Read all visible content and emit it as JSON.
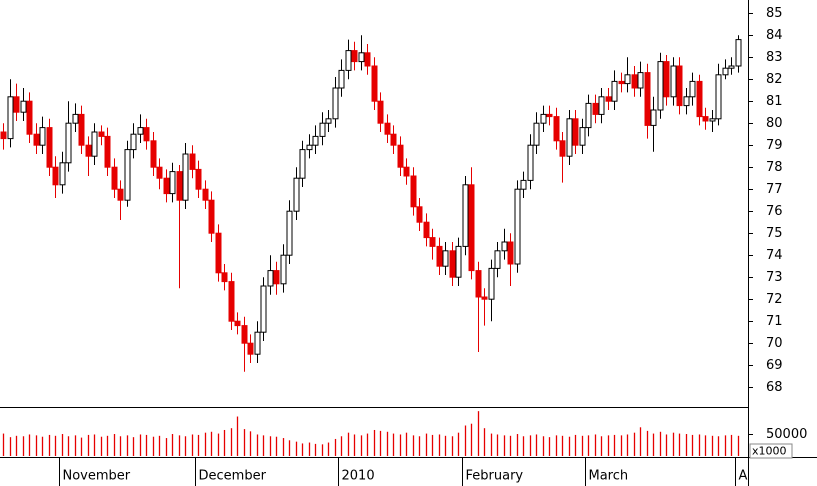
{
  "chart_data": {
    "type": "candlestick",
    "categories": [
      null,
      null,
      null,
      null,
      null,
      null,
      null,
      null,
      null,
      "November",
      null,
      null,
      null,
      null,
      null,
      null,
      null,
      null,
      null,
      null,
      null,
      null,
      null,
      null,
      null,
      null,
      null,
      null,
      null,
      null,
      "December",
      null,
      null,
      null,
      null,
      null,
      null,
      null,
      null,
      null,
      null,
      null,
      null,
      null,
      null,
      null,
      null,
      null,
      null,
      null,
      null,
      null,
      "2010",
      null,
      null,
      null,
      null,
      null,
      null,
      null,
      null,
      null,
      null,
      null,
      null,
      null,
      null,
      null,
      null,
      null,
      null,
      "February",
      null,
      null,
      null,
      null,
      null,
      null,
      null,
      null,
      null,
      null,
      null,
      null,
      null,
      null,
      null,
      null,
      null,
      null,
      "March",
      null,
      null,
      null,
      null,
      null,
      null,
      null,
      null,
      null,
      null,
      null,
      null,
      null,
      null,
      null,
      null,
      null,
      null,
      null,
      null,
      null,
      null,
      "A"
    ],
    "open": [
      79.6,
      79.3,
      81.2,
      80.5,
      81.0,
      79.5,
      79.0,
      79.8,
      78.0,
      77.2,
      78.2,
      80.0,
      80.4,
      79.0,
      78.5,
      79.6,
      79.4,
      78.0,
      77.0,
      76.5,
      78.8,
      79.5,
      79.8,
      79.2,
      78.0,
      77.5,
      76.8,
      77.8,
      76.5,
      78.6,
      77.9,
      77.0,
      76.5,
      75.0,
      73.2,
      72.8,
      71.0,
      70.8,
      70.0,
      69.5,
      70.5,
      72.6,
      73.3,
      72.7,
      74.0,
      76.0,
      77.5,
      78.8,
      79.0,
      79.4,
      80.0,
      80.2,
      81.6,
      82.4,
      83.3,
      82.8,
      83.2,
      82.6,
      81.0,
      80.0,
      79.5,
      79.0,
      78.0,
      77.6,
      76.2,
      75.5,
      74.8,
      74.4,
      73.5,
      74.2,
      73.0,
      74.4,
      77.2,
      73.3,
      72.1,
      72.0,
      73.4,
      74.2,
      74.6,
      73.6,
      77.0,
      77.4,
      79.0,
      80.0,
      80.4,
      80.3,
      79.2,
      78.5,
      80.2,
      79.0,
      79.8,
      80.9,
      80.4,
      81.2,
      81.0,
      81.9,
      81.8,
      82.2,
      81.6,
      82.3,
      79.9,
      80.6,
      82.8,
      81.2,
      82.6,
      80.8,
      81.2,
      81.9,
      80.3,
      80.1,
      80.2,
      82.2,
      82.5,
      82.6
    ],
    "high": [
      80.0,
      82.0,
      81.8,
      81.6,
      81.4,
      80.0,
      80.3,
      80.2,
      78.5,
      78.7,
      81.0,
      80.9,
      80.8,
      79.4,
      80.0,
      79.9,
      79.8,
      78.4,
      77.4,
      79.2,
      80.0,
      80.4,
      80.2,
      79.6,
      78.4,
      77.9,
      78.2,
      78.1,
      79.1,
      79.0,
      78.3,
      77.4,
      76.9,
      75.4,
      73.6,
      73.2,
      71.4,
      71.2,
      70.4,
      71.0,
      73.0,
      74.0,
      73.7,
      74.5,
      76.5,
      78.0,
      79.2,
      79.5,
      79.9,
      80.5,
      80.6,
      82.1,
      82.9,
      83.8,
      83.7,
      84.0,
      83.6,
      83.0,
      81.4,
      80.4,
      79.9,
      79.4,
      78.4,
      78.0,
      76.6,
      75.9,
      75.2,
      74.8,
      74.6,
      74.6,
      74.8,
      77.6,
      78.0,
      73.7,
      72.5,
      73.8,
      74.6,
      75.2,
      75.0,
      77.4,
      77.8,
      79.5,
      80.5,
      80.8,
      80.8,
      80.7,
      79.6,
      80.6,
      80.6,
      80.2,
      81.3,
      81.3,
      81.6,
      81.6,
      82.4,
      82.3,
      83.0,
      82.6,
      82.8,
      82.7,
      81.2,
      83.2,
      83.1,
      83.0,
      83.0,
      81.6,
      82.3,
      82.2,
      80.7,
      80.6,
      82.7,
      82.9,
      83.0,
      84.0
    ],
    "low": [
      78.8,
      78.9,
      80.1,
      80.1,
      79.1,
      78.6,
      78.6,
      77.6,
      76.6,
      76.8,
      77.8,
      79.6,
      78.6,
      77.6,
      78.1,
      79.0,
      77.6,
      76.6,
      75.6,
      76.2,
      78.4,
      79.1,
      78.8,
      77.6,
      77.0,
      76.4,
      76.4,
      72.5,
      76.1,
      77.5,
      76.6,
      76.1,
      74.6,
      72.8,
      72.4,
      70.6,
      70.4,
      68.7,
      69.1,
      69.1,
      70.1,
      72.2,
      72.2,
      72.3,
      73.6,
      75.6,
      77.1,
      78.4,
      78.6,
      79.0,
      79.6,
      79.8,
      81.2,
      82.0,
      82.4,
      82.4,
      82.2,
      80.6,
      79.6,
      79.1,
      78.6,
      77.6,
      77.2,
      75.8,
      75.1,
      74.4,
      73.8,
      73.1,
      73.1,
      72.6,
      72.6,
      74.0,
      72.9,
      69.6,
      70.8,
      71.0,
      73.0,
      73.8,
      72.6,
      73.2,
      76.6,
      77.0,
      78.6,
      79.6,
      79.9,
      78.8,
      77.3,
      78.1,
      78.6,
      78.6,
      79.4,
      80.0,
      80.0,
      80.6,
      80.6,
      81.4,
      81.4,
      81.2,
      81.2,
      79.3,
      78.7,
      80.2,
      80.8,
      80.8,
      80.4,
      80.4,
      80.8,
      79.9,
      79.7,
      79.6,
      79.9,
      82.0,
      82.2,
      82.3
    ],
    "close": [
      79.3,
      81.2,
      80.5,
      81.0,
      79.5,
      79.0,
      79.8,
      78.0,
      77.2,
      78.2,
      80.0,
      80.4,
      79.0,
      78.5,
      79.6,
      79.4,
      78.0,
      77.0,
      76.5,
      78.8,
      79.5,
      79.8,
      79.2,
      78.0,
      77.5,
      76.8,
      77.8,
      76.5,
      78.6,
      77.9,
      77.0,
      76.5,
      75.0,
      73.2,
      72.8,
      71.0,
      70.8,
      70.0,
      69.5,
      70.5,
      72.6,
      73.3,
      72.7,
      74.0,
      76.0,
      77.5,
      78.8,
      79.0,
      79.4,
      80.0,
      80.2,
      81.6,
      82.4,
      83.3,
      82.8,
      83.2,
      82.6,
      81.0,
      80.0,
      79.5,
      79.0,
      78.0,
      77.6,
      76.2,
      75.5,
      74.8,
      74.4,
      73.5,
      74.2,
      73.0,
      74.4,
      77.2,
      73.3,
      72.1,
      72.0,
      73.4,
      74.2,
      74.6,
      73.6,
      77.0,
      77.4,
      79.0,
      80.0,
      80.4,
      80.3,
      79.2,
      78.5,
      80.2,
      79.0,
      79.8,
      80.9,
      80.4,
      81.2,
      81.0,
      81.9,
      81.8,
      82.2,
      81.6,
      82.3,
      79.9,
      80.6,
      82.8,
      81.2,
      82.6,
      80.8,
      81.2,
      81.9,
      80.3,
      80.1,
      80.2,
      82.2,
      82.5,
      82.6,
      83.8
    ],
    "volume": [
      50000,
      42000,
      45000,
      44000,
      48000,
      46000,
      43000,
      47000,
      45000,
      49000,
      44000,
      46000,
      41000,
      47000,
      48000,
      43000,
      45000,
      49000,
      44000,
      46000,
      42000,
      48000,
      47000,
      43000,
      45000,
      40000,
      49000,
      46000,
      44000,
      48000,
      47000,
      52000,
      54000,
      50000,
      58000,
      62000,
      88000,
      60000,
      55000,
      48000,
      46000,
      44000,
      43000,
      40000,
      35000,
      32000,
      28000,
      30000,
      27000,
      26000,
      30000,
      38000,
      44000,
      52000,
      48000,
      46000,
      50000,
      58000,
      56000,
      54000,
      50000,
      48000,
      52000,
      46000,
      44000,
      50000,
      47000,
      48000,
      45000,
      44000,
      52000,
      68000,
      72000,
      100000,
      62000,
      50000,
      48000,
      46000,
      45000,
      49000,
      44000,
      46000,
      48000,
      44000,
      42000,
      46000,
      45000,
      43000,
      47000,
      45000,
      46000,
      48000,
      44000,
      46000,
      47000,
      46000,
      48000,
      52000,
      64000,
      56000,
      50000,
      54000,
      48000,
      52000,
      50000,
      49000,
      47000,
      48000,
      46000,
      45000,
      44000,
      46000,
      47000,
      45000
    ],
    "ylim": [
      67.1,
      85.6
    ],
    "yticks": [
      68,
      69,
      70,
      71,
      72,
      73,
      74,
      75,
      76,
      77,
      78,
      79,
      80,
      81,
      82,
      83,
      84,
      85
    ],
    "volume_ylim": [
      0,
      107000
    ],
    "volume_yticks": [
      50000
    ],
    "volume_unit_label": "x1000",
    "up_color": "#ffffff",
    "down_color": "#e60000",
    "outline_color": "#000000",
    "volume_color": "#e60000"
  }
}
